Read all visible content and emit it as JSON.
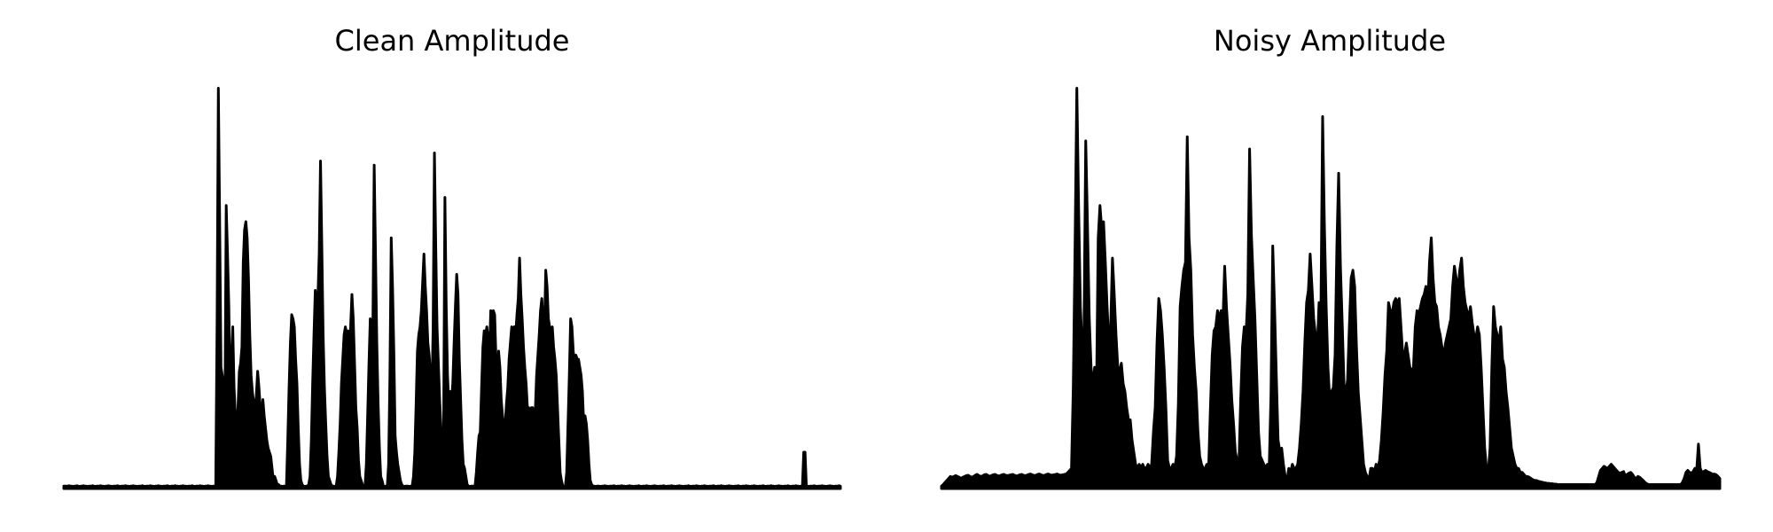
{
  "chart_data": [
    {
      "type": "area",
      "title": "Clean Amplitude",
      "xlabel": "",
      "ylabel": "",
      "axes_visible": false,
      "grid": false,
      "xlim": [
        0,
        1000
      ],
      "ylim": [
        0,
        1
      ],
      "color": "#000000",
      "series": [
        {
          "values": [
            0.006,
            0.006,
            0.006,
            0.006,
            0.007,
            0.006,
            0.006,
            0.005,
            0.006,
            0.006,
            0.007,
            0.006,
            0.005,
            0.006,
            0.006,
            0.007,
            0.006,
            0.006,
            0.005,
            0.006,
            0.006,
            0.006,
            0.007,
            0.006,
            0.005,
            0.006,
            0.006,
            0.006,
            0.007,
            0.006,
            0.006,
            0.005,
            0.006,
            0.006,
            0.007,
            0.006,
            0.006,
            0.005,
            0.006,
            0.006,
            0.006,
            0.007,
            0.006,
            0.005,
            0.006,
            0.006,
            0.006,
            0.007,
            0.006,
            0.006,
            0.005,
            0.006,
            0.006,
            0.007,
            0.006,
            0.006,
            0.005,
            0.006,
            0.006,
            0.006,
            0.007,
            0.006,
            0.005,
            0.006,
            0.006,
            0.006,
            0.007,
            0.006,
            0.006,
            0.005,
            0.006,
            0.006,
            0.007,
            0.006,
            0.006,
            0.005,
            0.006,
            0.006,
            0.006,
            0.007,
            0.006,
            0.005,
            0.006,
            0.006,
            0.006,
            0.007,
            0.006,
            0.006,
            0.005,
            0.006,
            0.006,
            0.007,
            0.006,
            0.006,
            0.005,
            0.006,
            0.006,
            0.006,
            0.007,
            0.006,
            0.005,
            0.006,
            0.006,
            0.006,
            0.007,
            0.006,
            0.006,
            0.005,
            0.006,
            0.006,
            0.007,
            0.006,
            0.006,
            0.005,
            0.006,
            0.006,
            0.006,
            0.4,
            0.99,
            0.66,
            0.3,
            0.28,
            0.25,
            0.18,
            0.7,
            0.58,
            0.45,
            0.23,
            0.31,
            0.4,
            0.25,
            0.18,
            0.14,
            0.2,
            0.29,
            0.31,
            0.35,
            0.56,
            0.64,
            0.66,
            0.62,
            0.52,
            0.38,
            0.28,
            0.24,
            0.21,
            0.2,
            0.23,
            0.29,
            0.25,
            0.2,
            0.18,
            0.22,
            0.18,
            0.15,
            0.12,
            0.1,
            0.09,
            0.08,
            0.05,
            0.02,
            0.03,
            0.02,
            0.01,
            0.01,
            0.006,
            0.006,
            0.005,
            0.006,
            0.006,
            0.007,
            0.12,
            0.25,
            0.36,
            0.43,
            0.42,
            0.4,
            0.32,
            0.26,
            0.15,
            0.06,
            0.02,
            0.01,
            0.006,
            0.005,
            0.006,
            0.006,
            0.01,
            0.03,
            0.12,
            0.26,
            0.38,
            0.49,
            0.44,
            0.47,
            0.58,
            0.81,
            0.6,
            0.38,
            0.25,
            0.16,
            0.08,
            0.03,
            0.02,
            0.01,
            0.006,
            0.006,
            0.005,
            0.006,
            0.03,
            0.09,
            0.16,
            0.26,
            0.32,
            0.38,
            0.4,
            0.38,
            0.39,
            0.35,
            0.4,
            0.48,
            0.42,
            0.31,
            0.2,
            0.15,
            0.07,
            0.03,
            0.02,
            0.01,
            0.006,
            0.006,
            0.06,
            0.18,
            0.31,
            0.42,
            0.4,
            0.4,
            0.8,
            0.58,
            0.36,
            0.21,
            0.1,
            0.03,
            0.02,
            0.006,
            0.005,
            0.006,
            0.006,
            0.06,
            0.28,
            0.62,
            0.5,
            0.34,
            0.13,
            0.09,
            0.06,
            0.04,
            0.02,
            0.01,
            0.006,
            0.005,
            0.006,
            0.006,
            0.006,
            0.005,
            0.006,
            0.006,
            0.03,
            0.09,
            0.21,
            0.34,
            0.38,
            0.4,
            0.44,
            0.51,
            0.58,
            0.5,
            0.44,
            0.36,
            0.33,
            0.28,
            0.22,
            0.4,
            0.83,
            0.6,
            0.4,
            0.31,
            0.22,
            0.15,
            0.09,
            0.14,
            0.72,
            0.45,
            0.28,
            0.21,
            0.24,
            0.22,
            0.26,
            0.36,
            0.45,
            0.53,
            0.48,
            0.32,
            0.22,
            0.12,
            0.06,
            0.05,
            0.03,
            0.01,
            0.006,
            0.005,
            0.006,
            0.006,
            0.006,
            0.005,
            0.04,
            0.09,
            0.13,
            0.14,
            0.25,
            0.35,
            0.39,
            0.38,
            0.4,
            0.37,
            0.33,
            0.44,
            0.38,
            0.44,
            0.43,
            0.32,
            0.2,
            0.34,
            0.3,
            0.22,
            0.18,
            0.14,
            0.16,
            0.21,
            0.25,
            0.32,
            0.36,
            0.4,
            0.39,
            0.4,
            0.38,
            0.43,
            0.47,
            0.57,
            0.48,
            0.42,
            0.35,
            0.3,
            0.26,
            0.2,
            0.2,
            0.19,
            0.2,
            0.2,
            0.19,
            0.19,
            0.28,
            0.33,
            0.38,
            0.44,
            0.47,
            0.41,
            0.39,
            0.54,
            0.5,
            0.42,
            0.4,
            0.38,
            0.4,
            0.35,
            0.32,
            0.28,
            0.2,
            0.12,
            0.04,
            0.02,
            0.006,
            0.005,
            0.006,
            0.04,
            0.16,
            0.28,
            0.42,
            0.4,
            0.34,
            0.31,
            0.33,
            0.32,
            0.32,
            0.3,
            0.28,
            0.24,
            0.16,
            0.18,
            0.16,
            0.12,
            0.06,
            0.02,
            0.01,
            0.006,
            0.006,
            0.005,
            0.006,
            0.006,
            0.006,
            0.005,
            0.006,
            0.006,
            0.007,
            0.006,
            0.006,
            0.005,
            0.006,
            0.006,
            0.006,
            0.007,
            0.006,
            0.005,
            0.006,
            0.006,
            0.006,
            0.007,
            0.006,
            0.006,
            0.005,
            0.006,
            0.006,
            0.007,
            0.006,
            0.006,
            0.005,
            0.006,
            0.006,
            0.006,
            0.007,
            0.006,
            0.005,
            0.006,
            0.006,
            0.006,
            0.007,
            0.006,
            0.006,
            0.005,
            0.006,
            0.006,
            0.007,
            0.006,
            0.006,
            0.005,
            0.006,
            0.006,
            0.006,
            0.007,
            0.006,
            0.005,
            0.006,
            0.006,
            0.006,
            0.007,
            0.006,
            0.006,
            0.005,
            0.006,
            0.006,
            0.007,
            0.006,
            0.006,
            0.005,
            0.006,
            0.006,
            0.006,
            0.007,
            0.006,
            0.005,
            0.006,
            0.006,
            0.006,
            0.007,
            0.006,
            0.006,
            0.005,
            0.006,
            0.006,
            0.007,
            0.006,
            0.006,
            0.005,
            0.006,
            0.006,
            0.006,
            0.007,
            0.006,
            0.005,
            0.006,
            0.006,
            0.006,
            0.007,
            0.006,
            0.006,
            0.005,
            0.006,
            0.006,
            0.007,
            0.006,
            0.006,
            0.005,
            0.006,
            0.006,
            0.006,
            0.007,
            0.006,
            0.005,
            0.006,
            0.006,
            0.006,
            0.007,
            0.006,
            0.006,
            0.005,
            0.006,
            0.006,
            0.007,
            0.006,
            0.006,
            0.005,
            0.006,
            0.006,
            0.006,
            0.007,
            0.006,
            0.005,
            0.006,
            0.006,
            0.006,
            0.007,
            0.006,
            0.006,
            0.005,
            0.006,
            0.006,
            0.007,
            0.006,
            0.006,
            0.005,
            0.006,
            0.006,
            0.006,
            0.007,
            0.006,
            0.005,
            0.006,
            0.006,
            0.006,
            0.007,
            0.006,
            0.006,
            0.005,
            0.006,
            0.006,
            0.09,
            0.09,
            0.006,
            0.006,
            0.005,
            0.006,
            0.006,
            0.006,
            0.007,
            0.006,
            0.005,
            0.006,
            0.006,
            0.006,
            0.007,
            0.006,
            0.006,
            0.005,
            0.006,
            0.006,
            0.007,
            0.006,
            0.006,
            0.005,
            0.006,
            0.006,
            0.006,
            0.007,
            0.006
          ]
        }
      ]
    },
    {
      "type": "area",
      "title": "Noisy Amplitude",
      "xlabel": "",
      "ylabel": "",
      "axes_visible": false,
      "grid": false,
      "xlim": [
        0,
        1000
      ],
      "ylim": [
        0,
        1
      ],
      "color": "#000000",
      "series": [
        {
          "values": [
            0.006,
            0.01,
            0.015,
            0.02,
            0.025,
            0.03,
            0.028,
            0.03,
            0.032,
            0.03,
            0.028,
            0.025,
            0.028,
            0.03,
            0.032,
            0.033,
            0.03,
            0.028,
            0.03,
            0.033,
            0.035,
            0.032,
            0.03,
            0.031,
            0.034,
            0.035,
            0.033,
            0.03,
            0.032,
            0.034,
            0.035,
            0.033,
            0.031,
            0.032,
            0.034,
            0.035,
            0.033,
            0.032,
            0.033,
            0.034,
            0.035,
            0.033,
            0.031,
            0.032,
            0.034,
            0.035,
            0.033,
            0.032,
            0.033,
            0.035,
            0.036,
            0.034,
            0.032,
            0.033,
            0.035,
            0.036,
            0.034,
            0.032,
            0.033,
            0.035,
            0.036,
            0.034,
            0.033,
            0.034,
            0.035,
            0.036,
            0.034,
            0.033,
            0.034,
            0.035,
            0.036,
            0.04,
            0.045,
            0.05,
            0.25,
            0.6,
            0.99,
            0.7,
            0.45,
            0.35,
            0.38,
            0.86,
            0.65,
            0.42,
            0.3,
            0.25,
            0.3,
            0.22,
            0.62,
            0.7,
            0.64,
            0.66,
            0.56,
            0.45,
            0.36,
            0.4,
            0.57,
            0.48,
            0.38,
            0.3,
            0.29,
            0.31,
            0.26,
            0.24,
            0.2,
            0.17,
            0.17,
            0.12,
            0.09,
            0.06,
            0.05,
            0.06,
            0.05,
            0.06,
            0.05,
            0.05,
            0.06,
            0.05,
            0.06,
            0.14,
            0.2,
            0.36,
            0.47,
            0.44,
            0.38,
            0.3,
            0.2,
            0.07,
            0.05,
            0.05,
            0.06,
            0.05,
            0.08,
            0.21,
            0.45,
            0.5,
            0.54,
            0.56,
            0.87,
            0.62,
            0.54,
            0.38,
            0.3,
            0.24,
            0.14,
            0.08,
            0.06,
            0.05,
            0.05,
            0.06,
            0.05,
            0.2,
            0.33,
            0.39,
            0.4,
            0.44,
            0.42,
            0.44,
            0.41,
            0.55,
            0.45,
            0.38,
            0.31,
            0.22,
            0.16,
            0.09,
            0.07,
            0.06,
            0.22,
            0.35,
            0.4,
            0.38,
            0.48,
            0.84,
            0.63,
            0.52,
            0.42,
            0.28,
            0.14,
            0.08,
            0.07,
            0.06,
            0.05,
            0.06,
            0.05,
            0.23,
            0.6,
            0.45,
            0.28,
            0.12,
            0.09,
            0.1,
            0.06,
            0.03,
            0.02,
            0.05,
            0.04,
            0.06,
            0.05,
            0.05,
            0.06,
            0.1,
            0.16,
            0.24,
            0.36,
            0.46,
            0.49,
            0.58,
            0.5,
            0.42,
            0.38,
            0.35,
            0.46,
            0.42,
            0.92,
            0.65,
            0.45,
            0.3,
            0.22,
            0.24,
            0.25,
            0.33,
            0.6,
            0.78,
            0.55,
            0.41,
            0.26,
            0.23,
            0.27,
            0.4,
            0.52,
            0.54,
            0.5,
            0.35,
            0.24,
            0.18,
            0.12,
            0.06,
            0.04,
            0.03,
            0.02,
            0.05,
            0.05,
            0.04,
            0.06,
            0.05,
            0.07,
            0.12,
            0.19,
            0.28,
            0.34,
            0.46,
            0.44,
            0.43,
            0.46,
            0.47,
            0.46,
            0.47,
            0.4,
            0.33,
            0.33,
            0.36,
            0.33,
            0.3,
            0.29,
            0.3,
            0.4,
            0.44,
            0.43,
            0.45,
            0.47,
            0.48,
            0.5,
            0.45,
            0.56,
            0.62,
            0.52,
            0.46,
            0.45,
            0.4,
            0.38,
            0.35,
            0.33,
            0.36,
            0.38,
            0.4,
            0.42,
            0.5,
            0.55,
            0.52,
            0.49,
            0.54,
            0.57,
            0.5,
            0.46,
            0.44,
            0.42,
            0.45,
            0.41,
            0.38,
            0.37,
            0.4,
            0.38,
            0.3,
            0.2,
            0.1,
            0.05,
            0.04,
            0.1,
            0.3,
            0.45,
            0.4,
            0.38,
            0.36,
            0.4,
            0.32,
            0.3,
            0.24,
            0.2,
            0.15,
            0.1,
            0.08,
            0.06,
            0.05,
            0.05,
            0.04,
            0.04,
            0.035,
            0.03,
            0.03,
            0.028,
            0.025,
            0.022,
            0.02,
            0.02,
            0.018,
            0.017,
            0.016,
            0.015,
            0.014,
            0.013,
            0.013,
            0.012,
            0.012,
            0.011,
            0.011,
            0.01,
            0.01,
            0.01,
            0.01,
            0.01,
            0.01,
            0.01,
            0.01,
            0.01,
            0.01,
            0.01,
            0.01,
            0.01,
            0.01,
            0.01,
            0.01,
            0.01,
            0.01,
            0.01,
            0.01,
            0.01,
            0.01,
            0.015,
            0.03,
            0.045,
            0.05,
            0.055,
            0.052,
            0.05,
            0.055,
            0.06,
            0.055,
            0.05,
            0.045,
            0.04,
            0.038,
            0.04,
            0.042,
            0.03,
            0.035,
            0.038,
            0.04,
            0.035,
            0.028,
            0.025,
            0.03,
            0.028,
            0.024,
            0.02,
            0.015,
            0.012,
            0.01,
            0.01,
            0.01,
            0.01,
            0.01,
            0.01,
            0.01,
            0.01,
            0.01,
            0.01,
            0.01,
            0.01,
            0.01,
            0.01,
            0.01,
            0.01,
            0.01,
            0.01,
            0.01,
            0.015,
            0.025,
            0.04,
            0.045,
            0.04,
            0.038,
            0.042,
            0.05,
            0.045,
            0.11,
            0.05,
            0.04,
            0.042,
            0.045,
            0.042,
            0.04,
            0.038,
            0.035,
            0.036,
            0.034,
            0.03,
            0.025
          ]
        }
      ]
    }
  ]
}
